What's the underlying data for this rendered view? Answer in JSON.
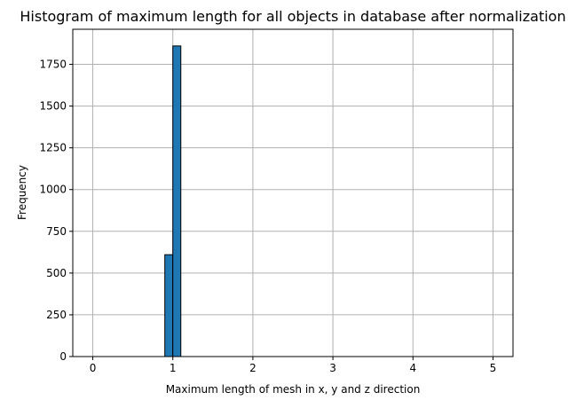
{
  "chart_data": {
    "type": "bar",
    "title": "Histogram of maximum length for all objects in database after normalization",
    "xlabel": "Maximum length of mesh in x, y and z direction",
    "ylabel": "Frequency",
    "xlim": [
      -0.25,
      5.25
    ],
    "ylim": [
      0,
      1960
    ],
    "xticks": [
      0,
      1,
      2,
      3,
      4,
      5
    ],
    "yticks": [
      0,
      250,
      500,
      750,
      1000,
      1250,
      1500,
      1750
    ],
    "xtick_labels": [
      "0",
      "1",
      "2",
      "3",
      "4",
      "5"
    ],
    "ytick_labels": [
      "0",
      "250",
      "500",
      "750",
      "1000",
      "1250",
      "1500",
      "1750"
    ],
    "grid": true,
    "bin_width": 0.1,
    "bins": [
      {
        "x0": 0.9,
        "x1": 1.0,
        "value": 610
      },
      {
        "x0": 1.0,
        "x1": 1.1,
        "value": 1860
      }
    ],
    "bar_color": "#1f77b4",
    "edge_color": "#000000"
  }
}
